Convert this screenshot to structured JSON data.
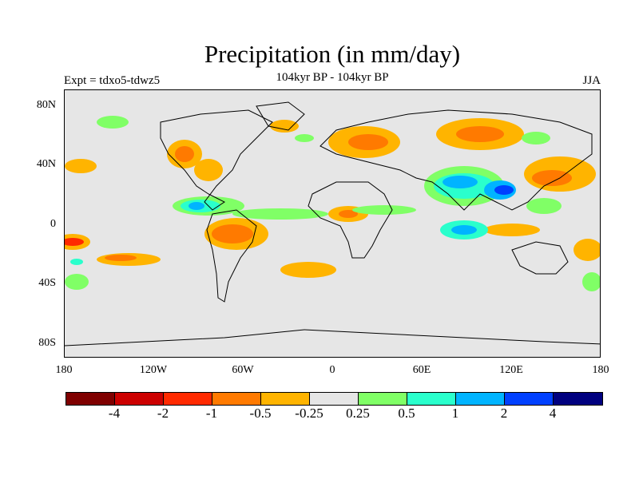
{
  "header": {
    "title": "Precipitation (in mm/day)",
    "subtitle": "104kyr BP - 104kyr BP",
    "left_label": "Expt = tdxo5-tdwz5",
    "right_label": "JJA"
  },
  "map": {
    "lat_labels": [
      "80N",
      "40N",
      "0",
      "40S",
      "80S"
    ],
    "lon_labels": [
      "180",
      "120W",
      "60W",
      "0",
      "60E",
      "120E",
      "180"
    ],
    "background_color": "#e6e6e6"
  },
  "colorbar": {
    "colors": [
      "#7f0000",
      "#cc0000",
      "#ff2a00",
      "#ff7a00",
      "#ffb400",
      "#e6e6e6",
      "#80ff66",
      "#2affcc",
      "#00b4ff",
      "#0040ff",
      "#00007f"
    ],
    "labels": [
      "-4",
      "-2",
      "-1",
      "-0.5",
      "-0.25",
      "0.25",
      "0.5",
      "1",
      "2",
      "4"
    ]
  }
}
